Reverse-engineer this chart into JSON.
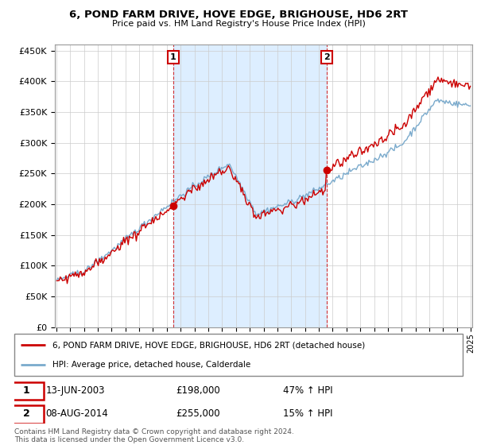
{
  "title": "6, POND FARM DRIVE, HOVE EDGE, BRIGHOUSE, HD6 2RT",
  "subtitle": "Price paid vs. HM Land Registry's House Price Index (HPI)",
  "legend_line1": "6, POND FARM DRIVE, HOVE EDGE, BRIGHOUSE, HD6 2RT (detached house)",
  "legend_line2": "HPI: Average price, detached house, Calderdale",
  "sale1_date": "13-JUN-2003",
  "sale1_price": 198000,
  "sale1_hpi": "47% ↑ HPI",
  "sale2_date": "08-AUG-2014",
  "sale2_price": 255000,
  "sale2_hpi": "15% ↑ HPI",
  "footer": "Contains HM Land Registry data © Crown copyright and database right 2024.\nThis data is licensed under the Open Government Licence v3.0.",
  "red_color": "#cc0000",
  "blue_color": "#7aaacc",
  "shade_color": "#ddeeff",
  "background_color": "#ffffff",
  "grid_color": "#cccccc",
  "ylim_min": 0,
  "ylim_max": 460000,
  "sale1_t": 2003.458,
  "sale2_t": 2014.583
}
